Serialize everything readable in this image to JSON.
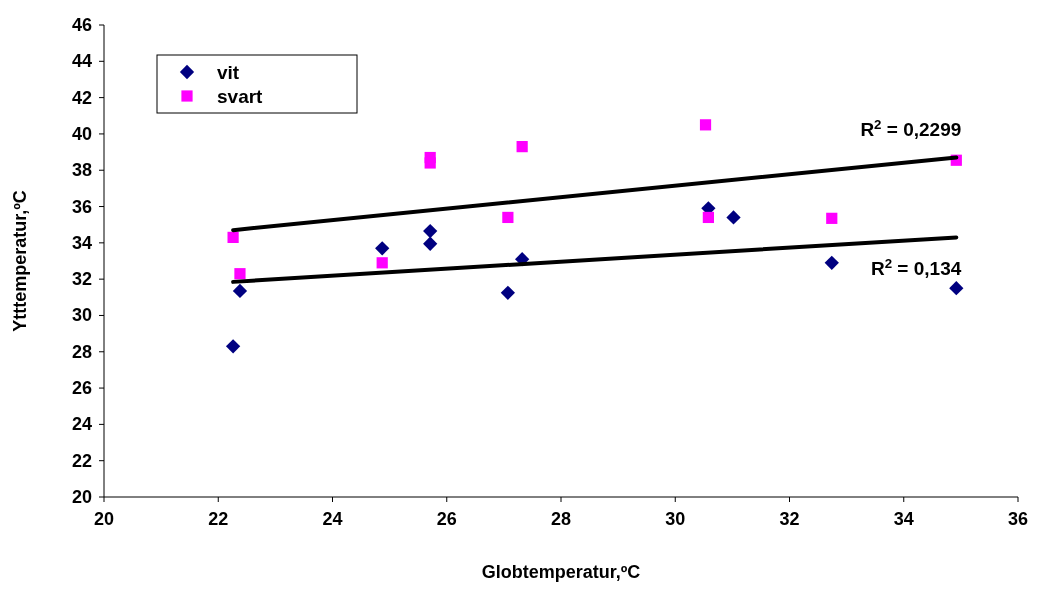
{
  "chart_data": {
    "type": "scatter",
    "xlabel": "Globtemperatur,ºC",
    "ylabel": "Ytttemperatur,ºC",
    "xlim": [
      20,
      36
    ],
    "xticks": [
      20,
      22,
      24,
      26,
      28,
      30,
      32,
      34,
      36
    ],
    "ylim": [
      20,
      46
    ],
    "yticks": [
      20,
      22,
      24,
      26,
      28,
      30,
      32,
      34,
      36,
      38,
      40,
      42,
      44,
      46
    ],
    "grid": false,
    "legend": "top left",
    "series": [
      {
        "name": "vit",
        "color": "#000080",
        "marker": "diamond",
        "x": [
          22.38,
          22.26,
          24.87,
          25.71,
          25.71,
          27.07,
          27.32,
          30.58,
          31.02,
          32.74,
          34.92
        ],
        "values": [
          31.35,
          28.3,
          33.7,
          34.65,
          33.95,
          31.25,
          33.1,
          35.9,
          35.4,
          32.9,
          31.5
        ]
      },
      {
        "name": "svart",
        "color": "#ff00ff",
        "marker": "square",
        "x": [
          22.26,
          22.38,
          24.87,
          25.71,
          25.71,
          27.07,
          27.32,
          30.53,
          30.58,
          32.74,
          34.92
        ],
        "values": [
          34.3,
          32.3,
          32.9,
          38.7,
          38.4,
          35.4,
          39.3,
          40.5,
          35.4,
          35.35,
          38.55
        ]
      },
      {
        "type": "line",
        "color": "#000000",
        "marker": "none",
        "x": [
          22.26,
          34.92
        ],
        "values": [
          34.7,
          38.7
        ]
      },
      {
        "type": "line",
        "color": "#000000",
        "marker": "none",
        "x": [
          22.26,
          34.92
        ],
        "values": [
          31.85,
          34.3
        ]
      }
    ],
    "annotations": [
      {
        "text": "R$^{2}$ = 0,2299",
        "x": 34.92,
        "y": 38.7
      },
      {
        "text": "R$^{2}$ = 0,134",
        "x": 34.92,
        "y": 34.3
      }
    ]
  }
}
